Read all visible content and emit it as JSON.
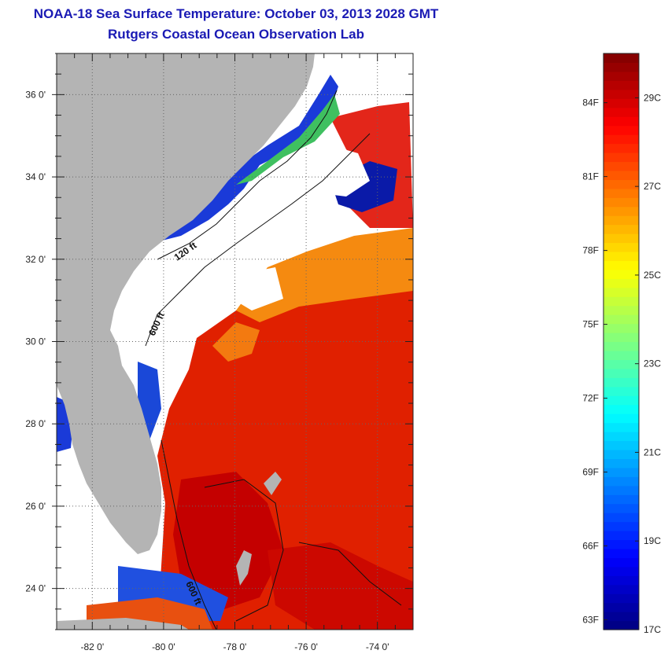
{
  "title": {
    "line1": "NOAA-18 Sea Surface Temperature:  October 03, 2013 2028 GMT",
    "line2": "Rutgers Coastal Ocean Observation Lab"
  },
  "map": {
    "lat_range": [
      23.0,
      37.0
    ],
    "lon_range": [
      -83.0,
      -73.0
    ],
    "lat_labels": [
      "24 0'",
      "26 0'",
      "28 0'",
      "30 0'",
      "32 0'",
      "34 0'",
      "36 0'"
    ],
    "lat_values": [
      24,
      26,
      28,
      30,
      32,
      34,
      36
    ],
    "lon_labels": [
      "-82 0'",
      "-80 0'",
      "-78 0'",
      "-76 0'",
      "-74 0'"
    ],
    "lon_values": [
      -82,
      -80,
      -78,
      -76,
      -74
    ],
    "contour_labels": [
      "120 ft",
      "600 ft",
      "600 ft"
    ],
    "colors": {
      "land": "#b4b4b4",
      "cloud": "#ffffff",
      "grid": "#666666"
    }
  },
  "colorbar": {
    "min_c": 17,
    "max_c": 30,
    "fahrenheit_labels": [
      "84F",
      "81F",
      "78F",
      "75F",
      "72F",
      "69F",
      "66F",
      "63F"
    ],
    "fahrenheit_values": [
      84,
      81,
      78,
      75,
      72,
      69,
      66,
      63
    ],
    "celsius_labels": [
      "29C",
      "27C",
      "25C",
      "23C",
      "21C",
      "19C",
      "17C"
    ],
    "celsius_values": [
      29,
      27,
      25,
      23,
      21,
      19,
      17
    ]
  }
}
